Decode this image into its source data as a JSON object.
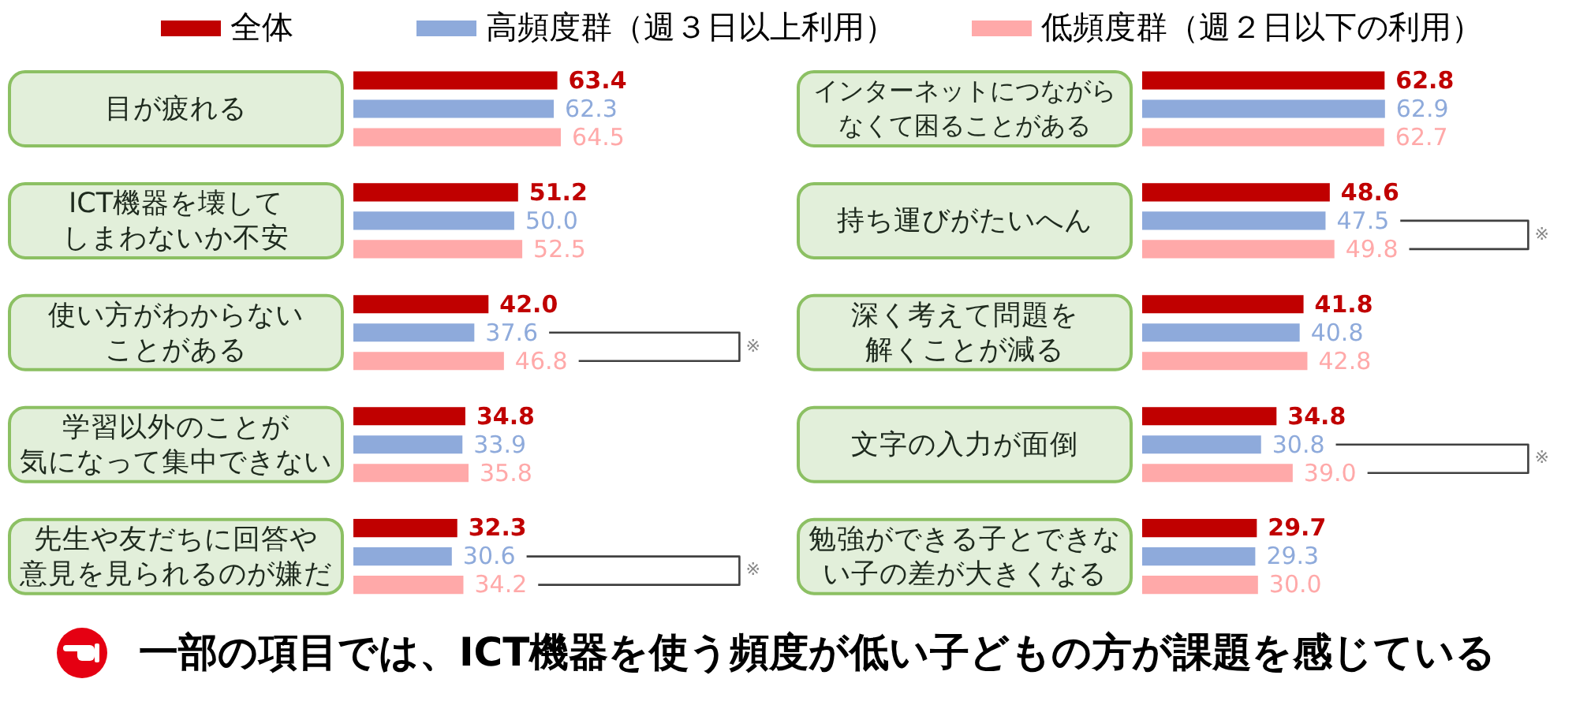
{
  "chart_data": [
    {
      "type": "bar",
      "orientation": "horizontal",
      "categories": [
        "目が疲れる",
        "ICT機器を壊してしまわないか不安",
        "使い方がわからないことがある",
        "学習以外のことが気になって集中できない",
        "先生や友だちに回答や意見を見られるのが嫌だ"
      ],
      "series": [
        {
          "name": "全体",
          "color": "#c00000",
          "values": [
            63.4,
            51.2,
            42.0,
            34.8,
            32.3
          ],
          "value_labels": [
            "63.4",
            "51.2",
            "42.0",
            "34.8",
            "32.3"
          ]
        },
        {
          "name": "高頻度群（週３日以上利用）",
          "color": "#8eaadb",
          "values": [
            62.3,
            50.0,
            37.6,
            33.9,
            30.6
          ],
          "value_labels": [
            "62.3",
            "50.0",
            "37.6",
            "33.9",
            "30.6"
          ]
        },
        {
          "name": "低頻度群（週２日以下の利用）",
          "color": "#ffa9a9",
          "values": [
            64.5,
            52.5,
            46.8,
            35.8,
            34.2
          ],
          "value_labels": [
            "64.5",
            "52.5",
            "46.8",
            "35.8",
            "34.2"
          ]
        }
      ],
      "tick_labels": "y",
      "legend": "top",
      "annotations": [
        "※",
        "※",
        "一部の項目では、ICT機器を使う頻度が低い子どもの方が課題を感じている"
      ]
    },
    {
      "type": "bar",
      "orientation": "horizontal",
      "categories": [
        "インターネットにつながらなくて困ることがある",
        "持ち運びがたいへん",
        "深く考えて問題を解くことが減る",
        "文字の入力が面倒",
        "勉強ができる子とできない子の差が大きくなる"
      ],
      "series": [
        {
          "color": "#c00000",
          "values": [
            62.8,
            48.6,
            41.8,
            34.8,
            29.7
          ],
          "value_labels": [
            "62.8",
            "48.6",
            "41.8",
            "34.8",
            "29.7"
          ]
        },
        {
          "color": "#8eaadb",
          "values": [
            62.9,
            47.5,
            40.8,
            30.8,
            29.3
          ],
          "value_labels": [
            "62.9",
            "47.5",
            "40.8",
            "30.8",
            "29.3"
          ]
        },
        {
          "color": "#ffa9a9",
          "values": [
            62.7,
            49.8,
            42.8,
            39.0,
            30.0
          ],
          "value_labels": [
            "62.7",
            "49.8",
            "42.8",
            "39.0",
            "30.0"
          ]
        }
      ],
      "tick_labels": "y",
      "annotations": [
        "※",
        "※"
      ]
    }
  ]
}
